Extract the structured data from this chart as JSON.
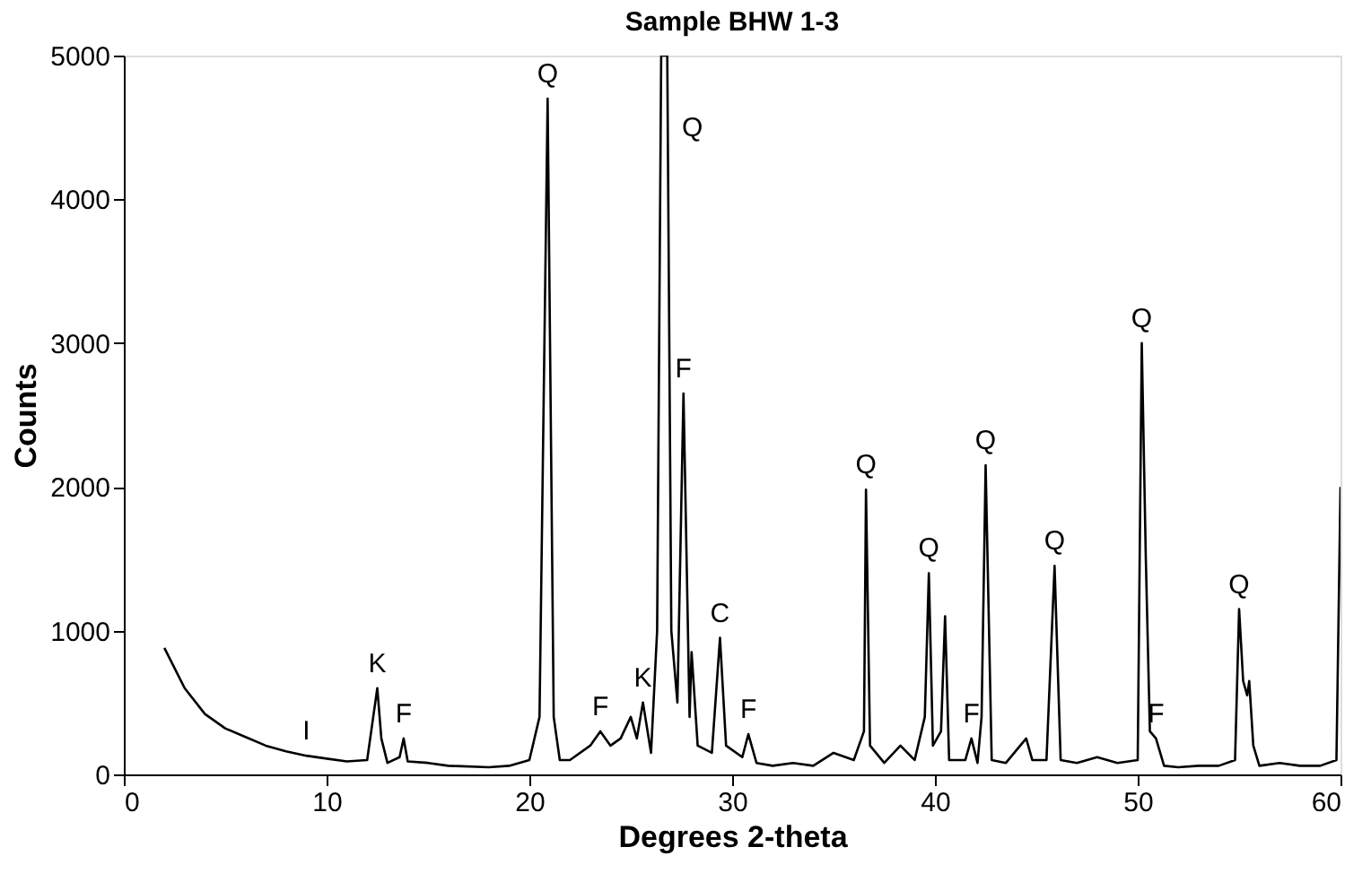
{
  "chart_data": {
    "type": "line",
    "title": "Sample BHW 1-3",
    "xlabel": "Degrees 2-theta",
    "ylabel": "Counts",
    "x": [
      2.0,
      3,
      4,
      5,
      6,
      7,
      8,
      9,
      10,
      11,
      12,
      12.3,
      12.5,
      12.7,
      13,
      13.6,
      13.8,
      14,
      15,
      16,
      18,
      19,
      20,
      20.5,
      20.9,
      21.2,
      21.5,
      22,
      23,
      23.5,
      24,
      24.5,
      25,
      25.3,
      25.6,
      26,
      26.3,
      26.5,
      26.8,
      27.0,
      27.3,
      27.6,
      27.9,
      28.0,
      28.3,
      29,
      29.4,
      29.7,
      30.5,
      30.8,
      31.2,
      32,
      33,
      34,
      35,
      36,
      36.5,
      36.6,
      36.8,
      37.5,
      38.3,
      39,
      39.5,
      39.7,
      39.9,
      40.3,
      40.5,
      40.7,
      41.5,
      41.8,
      42.1,
      42.3,
      42.5,
      42.8,
      43.5,
      44.5,
      44.8,
      45.5,
      45.9,
      46.2,
      47,
      48,
      49,
      50,
      50.2,
      50.4,
      50.6,
      50.9,
      51.3,
      52,
      53,
      54,
      54.8,
      55.0,
      55.2,
      55.4,
      55.5,
      55.7,
      56,
      57,
      58,
      59,
      59.8,
      60
    ],
    "series": [
      {
        "color": "#000000",
        "values": [
          880,
          600,
          420,
          320,
          260,
          200,
          160,
          130,
          110,
          90,
          100,
          400,
          600,
          250,
          80,
          120,
          250,
          90,
          80,
          60,
          50,
          60,
          100,
          400,
          4700,
          400,
          100,
          100,
          200,
          300,
          200,
          250,
          400,
          250,
          500,
          150,
          1000,
          5000,
          5000,
          1000,
          500,
          2650,
          400,
          850,
          200,
          150,
          950,
          200,
          120,
          280,
          80,
          60,
          80,
          60,
          150,
          100,
          300,
          1980,
          200,
          80,
          200,
          100,
          400,
          1400,
          200,
          300,
          1100,
          100,
          100,
          250,
          80,
          400,
          2150,
          100,
          80,
          250,
          100,
          100,
          1450,
          100,
          80,
          120,
          80,
          100,
          3000,
          1500,
          300,
          250,
          60,
          50,
          60,
          60,
          100,
          1150,
          650,
          550,
          650,
          200,
          60,
          80,
          60,
          60,
          100,
          2000
        ]
      }
    ],
    "xlim": [
      0,
      60
    ],
    "ylim": [
      0,
      5000
    ],
    "xticks": [
      0,
      10,
      20,
      30,
      40,
      50,
      60
    ],
    "yticks": [
      0,
      1000,
      2000,
      3000,
      4000,
      5000
    ],
    "grid": false,
    "marker": "none",
    "line_style": "solid",
    "annotations": [
      {
        "text": "I",
        "x": 9,
        "y": 130
      },
      {
        "text": "K",
        "x": 12.5,
        "y": 600
      },
      {
        "text": "F",
        "x": 13.8,
        "y": 250
      },
      {
        "text": "Q",
        "x": 20.9,
        "y": 4700
      },
      {
        "text": "F",
        "x": 23.5,
        "y": 300
      },
      {
        "text": "K",
        "x": 25.6,
        "y": 500
      },
      {
        "text": "Q",
        "x": 26.8,
        "y": 5000
      },
      {
        "text": "F",
        "x": 27.6,
        "y": 2650
      },
      {
        "text": "C",
        "x": 29.4,
        "y": 950
      },
      {
        "text": "F",
        "x": 30.8,
        "y": 280
      },
      {
        "text": "Q",
        "x": 36.6,
        "y": 1980
      },
      {
        "text": "Q",
        "x": 39.7,
        "y": 1400
      },
      {
        "text": "F",
        "x": 41.8,
        "y": 250
      },
      {
        "text": "Q",
        "x": 42.5,
        "y": 2150
      },
      {
        "text": "Q",
        "x": 45.9,
        "y": 1450
      },
      {
        "text": "Q",
        "x": 50.2,
        "y": 3000
      },
      {
        "text": "F",
        "x": 50.9,
        "y": 250
      },
      {
        "text": "Q",
        "x": 55.0,
        "y": 1150
      }
    ]
  }
}
